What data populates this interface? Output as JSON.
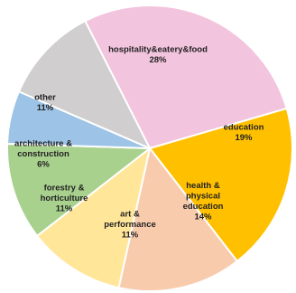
{
  "chart_data": {
    "type": "pie",
    "title": "",
    "slices": [
      {
        "label": "hospitality&eatery&food",
        "value": 28,
        "display": "28%",
        "color": "#F2C4DD"
      },
      {
        "label": "education",
        "value": 19,
        "display": "19%",
        "color": "#FFC000"
      },
      {
        "label": "health & physical education",
        "value": 14,
        "display": "14%",
        "color": "#F8CBAD"
      },
      {
        "label": "art & performance",
        "value": 11,
        "display": "11%",
        "color": "#FFE699"
      },
      {
        "label": "forestry & horticulture",
        "value": 11,
        "display": "11%",
        "color": "#A9D18E"
      },
      {
        "label": "architecture & construction",
        "value": 6,
        "display": "6%",
        "color": "#9DC3E6"
      },
      {
        "label": "other",
        "value": 11,
        "display": "11%",
        "color": "#D0CECE"
      }
    ]
  }
}
